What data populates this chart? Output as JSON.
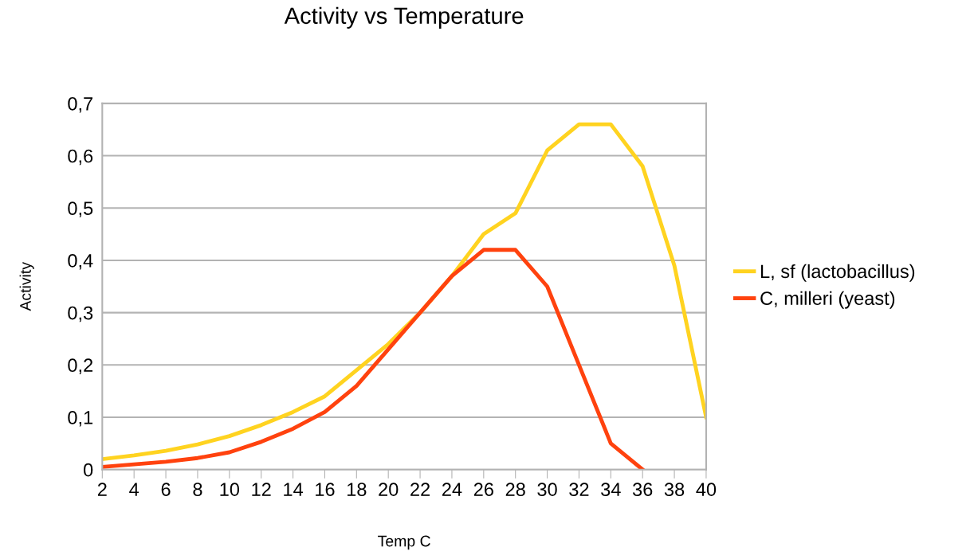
{
  "chart_data": {
    "type": "line",
    "title": "Activity vs Temperature",
    "xlabel": "Temp C",
    "ylabel": "Activity",
    "x": [
      2,
      4,
      6,
      8,
      10,
      12,
      14,
      16,
      18,
      20,
      22,
      24,
      26,
      28,
      30,
      32,
      34,
      36,
      38,
      40
    ],
    "series": [
      {
        "name": "L, sf (lactobacillus)",
        "color": "#ffd320",
        "values": [
          0.02,
          0.027,
          0.036,
          0.048,
          0.064,
          0.085,
          0.11,
          0.14,
          0.19,
          0.24,
          0.3,
          0.37,
          0.45,
          0.49,
          0.61,
          0.66,
          0.66,
          0.58,
          0.39,
          0.1
        ]
      },
      {
        "name": "C, milleri (yeast)",
        "color": "#ff420e",
        "values": [
          0.005,
          0.01,
          0.015,
          0.022,
          0.033,
          0.053,
          0.078,
          0.11,
          0.16,
          0.23,
          0.3,
          0.37,
          0.42,
          0.42,
          0.35,
          0.2,
          0.05,
          0.0,
          null,
          null
        ]
      }
    ],
    "xlim": [
      2,
      40
    ],
    "xticks": [
      2,
      4,
      6,
      8,
      10,
      12,
      14,
      16,
      18,
      20,
      22,
      24,
      26,
      28,
      30,
      32,
      34,
      36,
      38,
      40
    ],
    "ylim": [
      0,
      0.7
    ],
    "yticks": [
      {
        "value": 0,
        "label": "0"
      },
      {
        "value": 0.1,
        "label": "0,1"
      },
      {
        "value": 0.2,
        "label": "0,2"
      },
      {
        "value": 0.3,
        "label": "0,3"
      },
      {
        "value": 0.4,
        "label": "0,4"
      },
      {
        "value": 0.5,
        "label": "0,5"
      },
      {
        "value": 0.6,
        "label": "0,6"
      },
      {
        "value": 0.7,
        "label": "0,7"
      }
    ],
    "grid": "y",
    "legend": "right",
    "marker": "none",
    "line_style": "solid"
  }
}
